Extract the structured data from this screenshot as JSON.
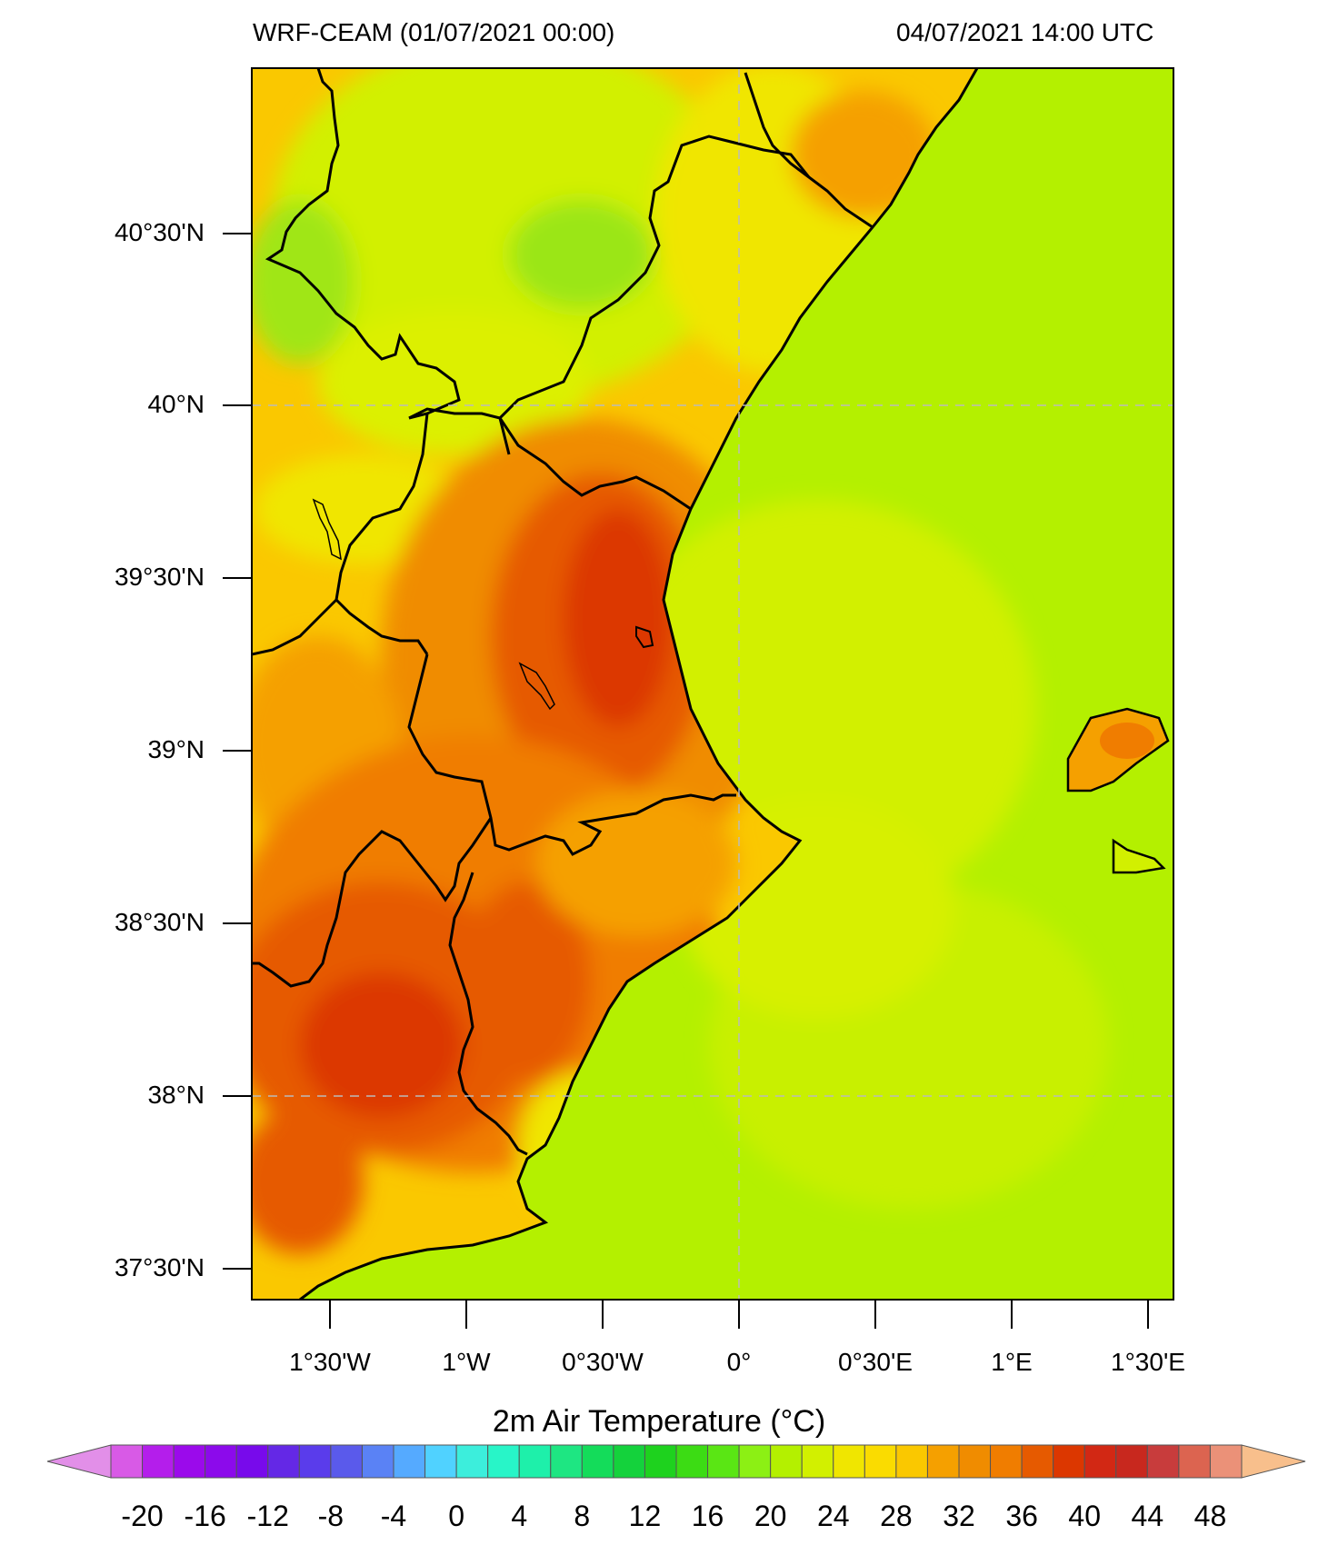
{
  "header": {
    "left_title": "WRF-CEAM  (01/07/2021 00:00)",
    "right_title": "04/07/2021 14:00 UTC"
  },
  "map": {
    "lat_labels": [
      "40°30'N",
      "40°N",
      "39°30'N",
      "39°N",
      "38°30'N",
      "38°N",
      "37°30'N"
    ],
    "lon_labels": [
      "1°30'W",
      "1°W",
      "0°30'W",
      "0°",
      "0°30'E",
      "1°E",
      "1°30'E"
    ],
    "sea_color": "#b4f000",
    "land_colors": [
      "#d2f000",
      "#f0e600",
      "#fac800",
      "#f5a000",
      "#f07d00",
      "#e65a00",
      "#dc3700"
    ]
  },
  "colorbar": {
    "title": "2m Air Temperature (°C)",
    "tick_labels": [
      "-20",
      "-16",
      "-12",
      "-8",
      "-4",
      "0",
      "4",
      "8",
      "12",
      "16",
      "20",
      "24",
      "28",
      "32",
      "36",
      "40",
      "44",
      "48"
    ],
    "low_color": "#e28fe8",
    "high_color": "#f8bf8c",
    "colors": [
      "#d85ae6",
      "#b41eeb",
      "#9b0aeb",
      "#8c0aeb",
      "#780aeb",
      "#6428e6",
      "#5a3ceb",
      "#5a5aeb",
      "#5a82f5",
      "#55aaff",
      "#50d2ff",
      "#3ceedc",
      "#28f5c8",
      "#1ef0aa",
      "#1ee682",
      "#14dc5a",
      "#14d23c",
      "#1ed21e",
      "#3cdc14",
      "#5ae614",
      "#8cf014",
      "#b4f000",
      "#d2f000",
      "#f0e600",
      "#fadc00",
      "#fac800",
      "#f5a000",
      "#f08c00",
      "#f07d00",
      "#e65a00",
      "#dc3700",
      "#d22814",
      "#c8281e",
      "#c83c3c",
      "#dc6450",
      "#eb9178"
    ]
  }
}
